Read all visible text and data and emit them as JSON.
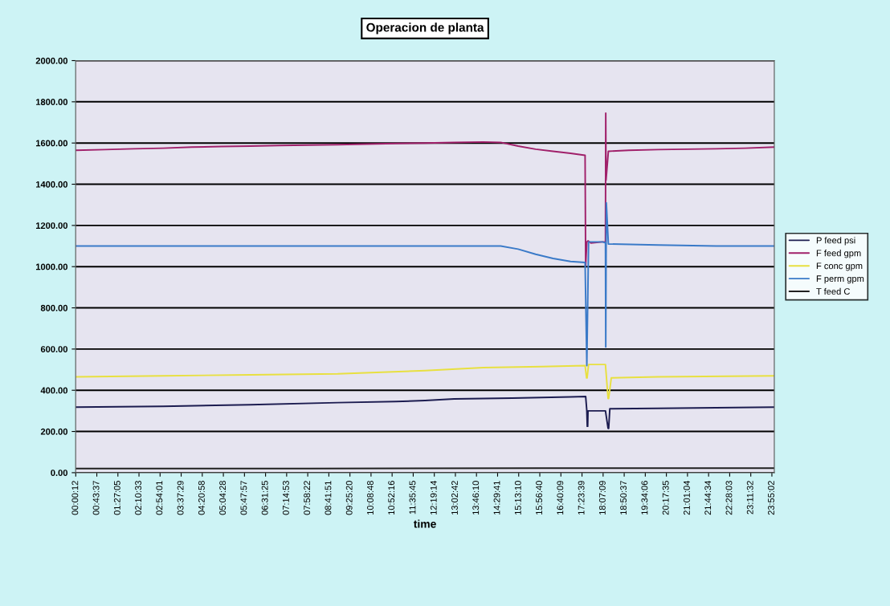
{
  "chart_data": {
    "type": "line",
    "title": "Operacion de planta",
    "xlabel": "time",
    "xlim": [
      0,
      24
    ],
    "xticks": [
      {
        "value": 0.003333,
        "label": "00:00:12"
      },
      {
        "value": 0.726944,
        "label": "00:43:37"
      },
      {
        "value": 1.451389,
        "label": "01:27:05"
      },
      {
        "value": 2.175833,
        "label": "02:10:33"
      },
      {
        "value": 2.900278,
        "label": "02:54:01"
      },
      {
        "value": 3.624722,
        "label": "03:37:29"
      },
      {
        "value": 4.349444,
        "label": "04:20:58"
      },
      {
        "value": 5.074444,
        "label": "05:04:28"
      },
      {
        "value": 5.799167,
        "label": "05:47:57"
      },
      {
        "value": 6.523611,
        "label": "06:31:25"
      },
      {
        "value": 7.248056,
        "label": "07:14:53"
      },
      {
        "value": 7.972778,
        "label": "07:58:22"
      },
      {
        "value": 8.6975,
        "label": "08:41:51"
      },
      {
        "value": 9.422222,
        "label": "09:25:20"
      },
      {
        "value": 10.146667,
        "label": "10:08:48"
      },
      {
        "value": 10.871111,
        "label": "10:52:16"
      },
      {
        "value": 11.595833,
        "label": "11:35:45"
      },
      {
        "value": 12.320556,
        "label": "12:19:14"
      },
      {
        "value": 13.045,
        "label": "13:02:42"
      },
      {
        "value": 13.769444,
        "label": "13:46:10"
      },
      {
        "value": 14.494722,
        "label": "14:29:41"
      },
      {
        "value": 15.219444,
        "label": "15:13:10"
      },
      {
        "value": 15.944444,
        "label": "15:56:40"
      },
      {
        "value": 16.669167,
        "label": "16:40:09"
      },
      {
        "value": 17.394167,
        "label": "17:23:39"
      },
      {
        "value": 18.119167,
        "label": "18:07:09"
      },
      {
        "value": 18.843611,
        "label": "18:50:37"
      },
      {
        "value": 19.568333,
        "label": "19:34:06"
      },
      {
        "value": 20.293056,
        "label": "20:17:35"
      },
      {
        "value": 21.017778,
        "label": "21:01:04"
      },
      {
        "value": 21.742778,
        "label": "21:44:34"
      },
      {
        "value": 22.4675,
        "label": "22:28:03"
      },
      {
        "value": 23.192222,
        "label": "23:11:32"
      },
      {
        "value": 23.917222,
        "label": "23:55:02"
      }
    ],
    "ylim": [
      0,
      2000
    ],
    "yticks": [
      {
        "value": 0,
        "label": "0.00"
      },
      {
        "value": 200,
        "label": "200.00"
      },
      {
        "value": 400,
        "label": "400.00"
      },
      {
        "value": 600,
        "label": "600.00"
      },
      {
        "value": 800,
        "label": "800.00"
      },
      {
        "value": 1000,
        "label": "1000.00"
      },
      {
        "value": 1200,
        "label": "1200.00"
      },
      {
        "value": 1400,
        "label": "1400.00"
      },
      {
        "value": 1600,
        "label": "1600.00"
      },
      {
        "value": 1800,
        "label": "1800.00"
      },
      {
        "value": 2000,
        "label": "2000.00"
      }
    ],
    "grid": "y",
    "legend": "right",
    "marker": "none",
    "line_style": "solid",
    "series": [
      {
        "name": "P feed psi",
        "color": "#1c1c50",
        "x": [
          0,
          3,
          6,
          9,
          11,
          12,
          13,
          15,
          17,
          17.52,
          17.56,
          17.575,
          17.59,
          17.6,
          18.2,
          18.29,
          18.31,
          18.35,
          20,
          22,
          24
        ],
        "values": [
          318,
          322,
          330,
          340,
          345,
          350,
          358,
          362,
          368,
          370,
          300,
          225,
          225,
          300,
          300,
          215,
          215,
          310,
          312,
          315,
          318
        ]
      },
      {
        "name": "F feed gpm",
        "color": "#a0206a",
        "x": [
          0,
          1,
          2,
          3,
          4,
          5,
          6,
          7,
          8,
          9,
          10,
          11,
          12,
          13,
          14,
          14.6,
          15.2,
          15.8,
          16.4,
          17.0,
          17.5,
          17.52,
          17.56,
          17.6,
          17.7,
          18.1,
          18.2,
          18.21,
          18.22,
          18.3,
          19,
          20,
          21,
          22,
          23,
          24
        ],
        "values": [
          1565,
          1568,
          1572,
          1575,
          1580,
          1583,
          1585,
          1588,
          1590,
          1592,
          1595,
          1598,
          1600,
          1603,
          1605,
          1603,
          1585,
          1570,
          1560,
          1550,
          1540,
          1005,
          1120,
          1125,
          1115,
          1120,
          1120,
          1745,
          1420,
          1560,
          1565,
          1568,
          1570,
          1572,
          1575,
          1580
        ]
      },
      {
        "name": "F conc gpm",
        "color": "#e8e040",
        "x": [
          0,
          3,
          6,
          9,
          12,
          14,
          16,
          17.5,
          17.55,
          17.57,
          17.62,
          18.2,
          18.29,
          18.31,
          18.4,
          20,
          24
        ],
        "values": [
          465,
          470,
          475,
          480,
          495,
          510,
          515,
          520,
          460,
          460,
          525,
          525,
          360,
          360,
          460,
          465,
          470
        ]
      },
      {
        "name": "F perm gpm",
        "color": "#3a7ac8",
        "x": [
          0,
          4,
          8,
          12,
          14.6,
          15.2,
          15.8,
          16.4,
          17.0,
          17.5,
          17.56,
          17.62,
          18.1,
          18.2,
          18.21,
          18.23,
          18.3,
          20,
          22,
          24
        ],
        "values": [
          1100,
          1100,
          1100,
          1100,
          1100,
          1085,
          1060,
          1040,
          1025,
          1020,
          520,
          1120,
          1120,
          1115,
          610,
          1310,
          1110,
          1105,
          1100,
          1100
        ]
      },
      {
        "name": "T feed C",
        "color": "#202020",
        "x": [
          0,
          8,
          16,
          24
        ],
        "values": [
          20,
          20,
          22,
          22
        ]
      }
    ]
  }
}
